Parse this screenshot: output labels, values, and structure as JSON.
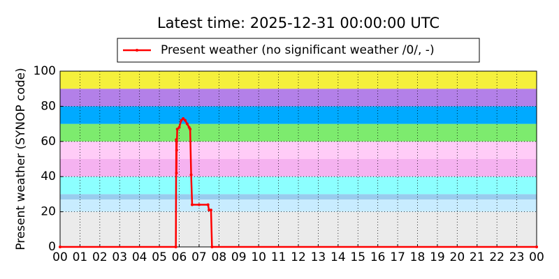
{
  "chart_data": {
    "type": "line",
    "title": "Latest time: 2025-12-31 00:00:00 UTC",
    "y_label": "Present weather (SYNOP code)",
    "x": [
      0,
      5.83,
      5.85,
      5.86,
      5.87,
      5.9,
      6.0,
      6.1,
      6.2,
      6.3,
      6.4,
      6.5,
      6.55,
      6.6,
      6.65,
      7.0,
      7.45,
      7.5,
      7.6,
      7.65,
      24
    ],
    "series": [
      {
        "name": "Present weather (no significant weather /0/, -)",
        "color": "#ff0000",
        "values": [
          0,
          0,
          61,
          42,
          55,
          67,
          68,
          72,
          73,
          72,
          70,
          68,
          67,
          41,
          24,
          24,
          24,
          21,
          21,
          0,
          0
        ]
      }
    ],
    "xlim": [
      0,
      24
    ],
    "xticks": [
      {
        "value": 0,
        "label": "00"
      },
      {
        "value": 1,
        "label": "01"
      },
      {
        "value": 2,
        "label": "02"
      },
      {
        "value": 3,
        "label": "03"
      },
      {
        "value": 4,
        "label": "04"
      },
      {
        "value": 5,
        "label": "05"
      },
      {
        "value": 6,
        "label": "06"
      },
      {
        "value": 7,
        "label": "07"
      },
      {
        "value": 8,
        "label": "08"
      },
      {
        "value": 9,
        "label": "09"
      },
      {
        "value": 10,
        "label": "10"
      },
      {
        "value": 11,
        "label": "11"
      },
      {
        "value": 12,
        "label": "12"
      },
      {
        "value": 13,
        "label": "13"
      },
      {
        "value": 14,
        "label": "14"
      },
      {
        "value": 15,
        "label": "15"
      },
      {
        "value": 16,
        "label": "16"
      },
      {
        "value": 17,
        "label": "17"
      },
      {
        "value": 18,
        "label": "18"
      },
      {
        "value": 19,
        "label": "19"
      },
      {
        "value": 20,
        "label": "20"
      },
      {
        "value": 21,
        "label": "21"
      },
      {
        "value": 22,
        "label": "22"
      },
      {
        "value": 23,
        "label": "23"
      },
      {
        "value": 24,
        "label": "00"
      }
    ],
    "ylim": [
      0,
      100
    ],
    "yticks": [
      0,
      20,
      40,
      60,
      80,
      100
    ],
    "grid": true,
    "legend": "top",
    "bands": [
      {
        "from": 0,
        "to": 20,
        "color": "#ebebeb"
      },
      {
        "from": 20,
        "to": 27,
        "color": "#c8ecff"
      },
      {
        "from": 27,
        "to": 30,
        "color": "#99ccee"
      },
      {
        "from": 30,
        "to": 40,
        "color": "#8cffff"
      },
      {
        "from": 40,
        "to": 50,
        "color": "#f5b2f0"
      },
      {
        "from": 50,
        "to": 60,
        "color": "#ffccf7"
      },
      {
        "from": 60,
        "to": 70,
        "color": "#7deb6e"
      },
      {
        "from": 70,
        "to": 80,
        "color": "#00aaff"
      },
      {
        "from": 80,
        "to": 90,
        "color": "#b380e8"
      },
      {
        "from": 90,
        "to": 100,
        "color": "#f5f03c"
      }
    ]
  }
}
